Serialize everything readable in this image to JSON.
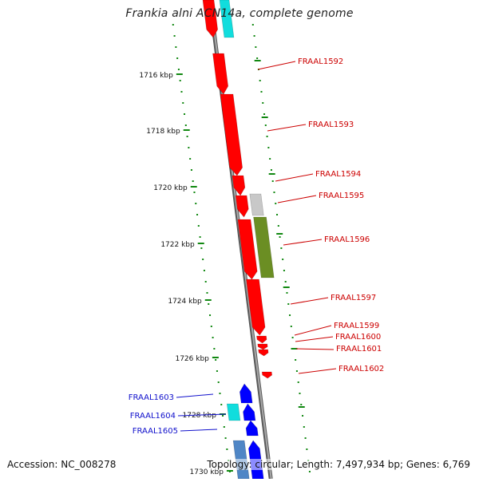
{
  "title": "Frankia alni ACN14a, complete genome",
  "footer": {
    "accession": "Accession: NC_008278",
    "summary": "Topology: circular; Length: 7,497,934 bp; Genes: 6,769"
  },
  "colors": {
    "backbone": "#808080",
    "tick": "#118811",
    "tick_label": "#111111",
    "red": "#ff0000",
    "cyan": "#11dddd",
    "blue": "#0000ff",
    "steelblue": "#4f86c6",
    "gray": "#c8c8c8",
    "olive": "#6b8e23",
    "label_red": "#cc0000",
    "label_blue": "#1111cc"
  },
  "scale_labels": [
    "1716 kbp",
    "1718 kbp",
    "1720 kbp",
    "1722 kbp",
    "1724 kbp",
    "1726 kbp",
    "1728 kbp",
    "1730 kbp"
  ],
  "features": [
    {
      "color": "red"
    },
    {
      "color": "cyan"
    },
    {
      "color": "red"
    },
    {
      "color": "red"
    },
    {
      "color": "red"
    },
    {
      "color": "red"
    },
    {
      "color": "gray"
    },
    {
      "color": "red"
    },
    {
      "color": "olive"
    },
    {
      "color": "red"
    },
    {
      "color": "red"
    },
    {
      "color": "red"
    },
    {
      "color": "red"
    },
    {
      "color": "red"
    },
    {
      "color": "blue"
    },
    {
      "color": "cyan"
    },
    {
      "color": "blue"
    },
    {
      "color": "blue"
    },
    {
      "color": "steelblue"
    },
    {
      "color": "blue"
    }
  ],
  "gene_labels": [
    {
      "text": "FRAAL1592",
      "color": "label_red"
    },
    {
      "text": "FRAAL1593",
      "color": "label_red"
    },
    {
      "text": "FRAAL1594",
      "color": "label_red"
    },
    {
      "text": "FRAAL1595",
      "color": "label_red"
    },
    {
      "text": "FRAAL1596",
      "color": "label_red"
    },
    {
      "text": "FRAAL1597",
      "color": "label_red"
    },
    {
      "text": "FRAAL1599",
      "color": "label_red"
    },
    {
      "text": "FRAAL1600",
      "color": "label_red"
    },
    {
      "text": "FRAAL1601",
      "color": "label_red"
    },
    {
      "text": "FRAAL1602",
      "color": "label_red"
    },
    {
      "text": "FRAAL1603",
      "color": "label_blue"
    },
    {
      "text": "FRAAL1604",
      "color": "label_blue"
    },
    {
      "text": "FRAAL1605",
      "color": "label_blue"
    }
  ]
}
